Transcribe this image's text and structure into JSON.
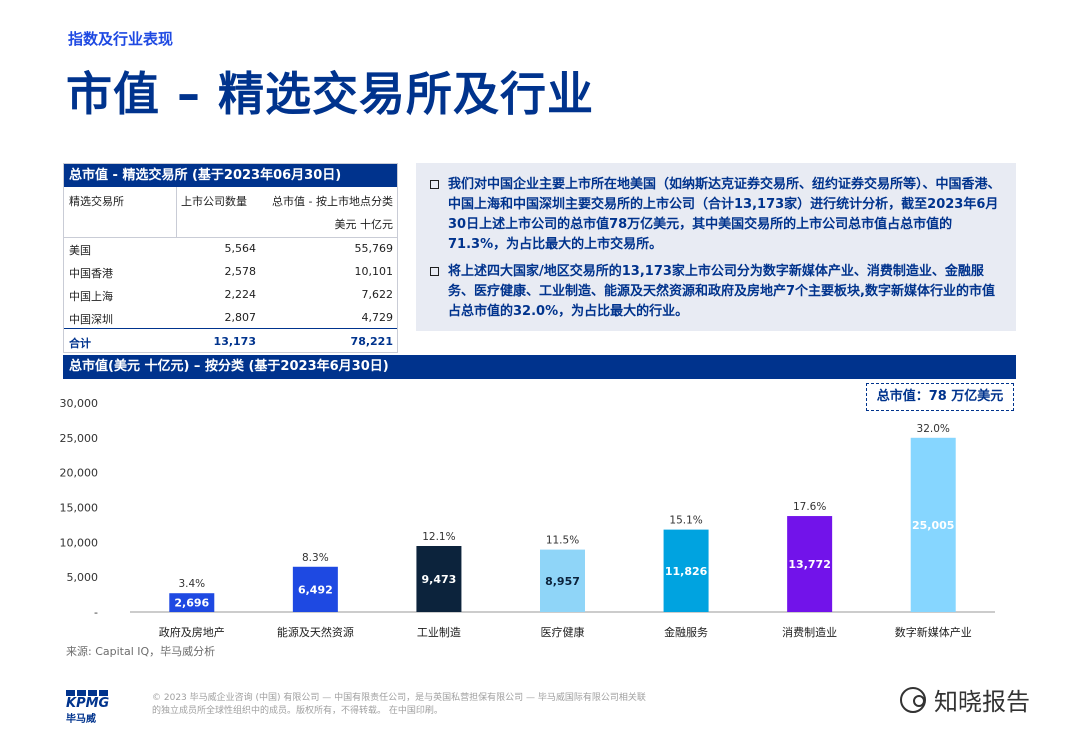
{
  "header": {
    "section": "指数及行业表现",
    "title": "市值 – 精选交易所及行业"
  },
  "table": {
    "title": "总市值 - 精选交易所 (基于2023年06月30日)",
    "col1": "精选交易所",
    "col2": "上市公司数量",
    "col3": "总市值 - 按上市地点分类",
    "unit": "美元 十亿元",
    "rows": [
      {
        "name": "美国",
        "count": "5,564",
        "value": "55,769"
      },
      {
        "name": "中国香港",
        "count": "2,578",
        "value": "10,101"
      },
      {
        "name": "中国上海",
        "count": "2,224",
        "value": "7,622"
      },
      {
        "name": "中国深圳",
        "count": "2,807",
        "value": "4,729"
      }
    ],
    "total": {
      "name": "合计",
      "count": "13,173",
      "value": "78,221"
    }
  },
  "notes": [
    "我们对中国企业主要上市所在地美国（如纳斯达克证券交易所、纽约证券交易所等）、中国香港、中国上海和中国深圳主要交易所的上市公司（合计13,173家）进行统计分析，截至2023年6月30日上述上市公司的总市值78万亿美元，其中美国交易所的上市公司总市值占总市值的 71.3%，为占比最大的上市交易所。",
    "将上述四大国家/地区交易所的13,173家上市公司分为数字新媒体产业、消费制造业、金融服务、医疗健康、工业制造、能源及天然资源和政府及房地产7个主要板块,数字新媒体行业的市值占总市值的32.0%，为占比最大的行业。"
  ],
  "chart_section": {
    "title": "总市值(美元 十亿元) – 按分类 (基于2023年6月30日)",
    "total_badge": "总市值：78 万亿美元",
    "source": "来源: Capital IQ，毕马威分析"
  },
  "chart_data": {
    "type": "bar",
    "categories": [
      "政府及房地产",
      "能源及天然资源",
      "工业制造",
      "医疗健康",
      "金融服务",
      "消费制造业",
      "数字新媒体产业"
    ],
    "values": [
      2696,
      6492,
      9473,
      8957,
      11826,
      13772,
      25005
    ],
    "value_labels": [
      "2,696",
      "6,492",
      "9,473",
      "8,957",
      "11,826",
      "13,772",
      "25,005"
    ],
    "percent_labels": [
      "3.4%",
      "8.3%",
      "12.1%",
      "11.5%",
      "15.1%",
      "17.6%",
      "32.0%"
    ],
    "colors": [
      "#1e49e2",
      "#1e49e2",
      "#0c233c",
      "#8fd5f8",
      "#00a3e0",
      "#7213ea",
      "#86d6ff"
    ],
    "label_colors": [
      "#ffffff",
      "#ffffff",
      "#ffffff",
      "#0c233c",
      "#ffffff",
      "#ffffff",
      "#ffffff"
    ],
    "yticks": [
      0,
      5000,
      10000,
      15000,
      20000,
      25000,
      30000
    ],
    "ytick_labels": [
      "-",
      "5,000",
      "10,000",
      "15,000",
      "20,000",
      "25,000",
      "30,000"
    ],
    "ylim": [
      0,
      30000
    ],
    "grid": false
  },
  "footer": {
    "logo": "KPMG",
    "logo_cn": "毕马威",
    "copyright_line1": "© 2023 毕马威企业咨询 (中国) 有限公司 — 中国有限责任公司，是与英国私营担保有限公司 — 毕马威国际有限公司相关联",
    "copyright_line2": "的独立成员所全球性组织中的成员。版权所有，不得转载。 在中国印刷。",
    "watermark": "知晓报告"
  }
}
